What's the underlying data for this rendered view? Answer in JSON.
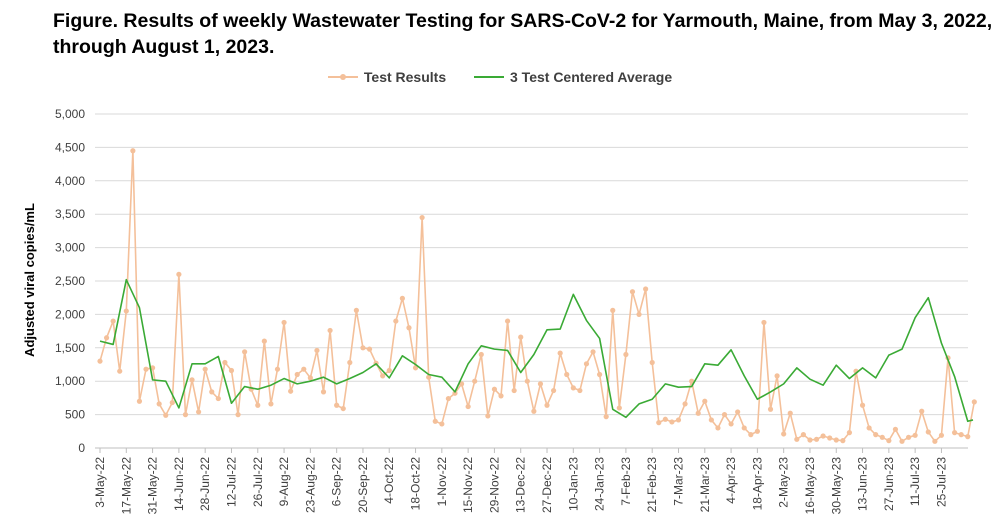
{
  "chart_data": {
    "type": "line",
    "title": "Figure. Results of weekly Wastewater Testing for SARS-CoV-2 for Yarmouth, Maine, from May 3, 2022, through August 1, 2023.",
    "xlabel": "",
    "ylabel": "Adjusted viral copies/mL",
    "ylim": [
      0,
      5000
    ],
    "y_ticks": [
      0,
      500,
      1000,
      1500,
      2000,
      2500,
      3000,
      3500,
      4000,
      4500,
      5000
    ],
    "y_tick_labels": [
      "0",
      "500",
      "1,000",
      "1,500",
      "2,000",
      "2,500",
      "3,000",
      "3,500",
      "4,000",
      "4,500",
      "5,000"
    ],
    "x_tick_labels": [
      "3-May-22",
      "17-May-22",
      "31-May-22",
      "14-Jun-22",
      "28-Jun-22",
      "12-Jul-22",
      "26-Jul-22",
      "9-Aug-22",
      "23-Aug-22",
      "6-Sep-22",
      "20-Sep-22",
      "4-Oct-22",
      "18-Oct-22",
      "1-Nov-22",
      "15-Nov-22",
      "29-Nov-22",
      "13-Dec-22",
      "27-Dec-22",
      "10-Jan-23",
      "24-Jan-23",
      "7-Feb-23",
      "21-Feb-23",
      "7-Mar-23",
      "21-Mar-23",
      "4-Apr-23",
      "18-Apr-23",
      "2-May-23",
      "16-May-23",
      "30-May-23",
      "13-Jun-23",
      "27-Jun-23",
      "11-Jul-23",
      "25-Jul-23"
    ],
    "grid": true,
    "legend_position": "top-center",
    "series": [
      {
        "name": "Test Results",
        "color": "#f4c09a",
        "marker": "circle",
        "x": [
          0.0,
          0.25,
          0.5,
          0.75,
          1.0,
          1.25,
          1.5,
          1.75,
          2.0,
          2.25,
          2.5,
          2.75,
          3.0,
          3.25,
          3.5,
          3.75,
          4.0,
          4.25,
          4.5,
          4.75,
          5.0,
          5.25,
          5.5,
          5.75,
          6.0,
          6.25,
          6.5,
          6.75,
          7.0,
          7.25,
          7.5,
          7.75,
          8.0,
          8.25,
          8.5,
          8.75,
          9.0,
          9.25,
          9.5,
          9.75,
          10.0,
          10.25,
          10.5,
          10.75,
          11.0,
          11.25,
          11.5,
          11.75,
          12.0,
          12.25,
          12.5,
          12.75,
          13.0,
          13.25,
          13.5,
          13.75,
          14.0,
          14.25,
          14.5,
          14.75,
          15.0,
          15.25,
          15.5,
          15.75,
          16.0,
          16.25,
          16.5,
          16.75,
          17.0,
          17.25,
          17.5,
          17.75,
          18.0,
          18.25,
          18.5,
          18.75,
          19.0,
          19.25,
          19.5,
          19.75,
          20.0,
          20.25,
          20.5,
          20.75,
          21.0,
          21.25,
          21.5,
          21.75,
          22.0,
          22.25,
          22.5,
          22.75,
          23.0,
          23.25,
          23.5,
          23.75,
          24.0,
          24.25,
          24.5,
          24.75,
          25.0,
          25.25,
          25.5,
          25.75,
          26.0,
          26.25,
          26.5,
          26.75,
          27.0,
          27.25,
          27.5,
          27.75,
          28.0,
          28.25,
          28.5,
          28.75,
          29.0,
          29.25,
          29.5,
          29.75,
          30.0,
          30.25,
          30.5,
          30.75,
          31.0,
          31.25,
          31.5,
          31.75,
          32.0,
          32.25,
          32.5,
          32.75,
          33.0,
          33.25
        ],
        "values": [
          1300,
          1650,
          1900,
          1150,
          2050,
          4450,
          700,
          1180,
          1200,
          660,
          490,
          680,
          2600,
          500,
          1020,
          540,
          1180,
          840,
          740,
          1280,
          1160,
          500,
          1440,
          880,
          640,
          1600,
          660,
          1180,
          1880,
          850,
          1100,
          1180,
          1050,
          1460,
          840,
          1760,
          640,
          590,
          1280,
          2060,
          1500,
          1480,
          1270,
          1080,
          1160,
          1900,
          2240,
          1800,
          1200,
          3450,
          1060,
          400,
          360,
          740,
          820,
          960,
          620,
          1000,
          1400,
          480,
          880,
          780,
          1900,
          860,
          1660,
          1000,
          550,
          960,
          640,
          860,
          1420,
          1100,
          900,
          860,
          1260,
          1440,
          1100,
          470,
          2060,
          600,
          1400,
          2340,
          2000,
          2380,
          1280,
          380,
          430,
          390,
          420,
          660,
          1000,
          520,
          700,
          420,
          300,
          500,
          360,
          540,
          300,
          200,
          250,
          1880,
          580,
          1080,
          210,
          520,
          130,
          200,
          120,
          130,
          180,
          150,
          120,
          110,
          230,
          1150,
          640,
          300,
          200,
          160,
          110,
          280,
          100,
          160,
          190,
          550,
          240,
          100,
          190,
          1350,
          230,
          200,
          170,
          690
        ],
        "show_every": 1
      },
      {
        "name": "3 Test Centered Average",
        "color": "#3aaa35",
        "marker": "none",
        "x": [
          0.0,
          0.5,
          1.0,
          1.5,
          2.0,
          2.5,
          3.0,
          3.5,
          4.0,
          4.5,
          5.0,
          5.5,
          6.0,
          6.5,
          7.0,
          7.5,
          8.0,
          8.5,
          9.0,
          9.5,
          10.0,
          10.5,
          11.0,
          11.5,
          12.0,
          12.5,
          13.0,
          13.5,
          14.0,
          14.5,
          15.0,
          15.5,
          16.0,
          16.5,
          17.0,
          17.5,
          18.0,
          18.5,
          19.0,
          19.5,
          20.0,
          20.5,
          21.0,
          21.5,
          22.0,
          22.5,
          23.0,
          23.5,
          24.0,
          24.5,
          25.0,
          25.5,
          26.0,
          26.5,
          27.0,
          27.5,
          28.0,
          28.5,
          29.0,
          29.5,
          30.0,
          30.5,
          31.0,
          31.5,
          32.0,
          32.5,
          33.0,
          33.2
        ],
        "values": [
          1600,
          1550,
          2520,
          2100,
          1020,
          1000,
          600,
          1260,
          1260,
          1370,
          670,
          920,
          880,
          940,
          1040,
          960,
          1000,
          1060,
          960,
          1040,
          1130,
          1260,
          1050,
          1380,
          1250,
          1100,
          1060,
          840,
          1260,
          1530,
          1480,
          1460,
          1130,
          1400,
          1770,
          1780,
          2300,
          1910,
          1640,
          580,
          460,
          660,
          730,
          960,
          910,
          920,
          1260,
          1240,
          1470,
          1080,
          730,
          840,
          960,
          1200,
          1030,
          940,
          1240,
          1040,
          1200,
          1050,
          1390,
          1480,
          1950,
          2250,
          1570,
          1070,
          400,
          420
        ]
      }
    ],
    "avg_note": "3-test centered average drawn as a green line"
  }
}
